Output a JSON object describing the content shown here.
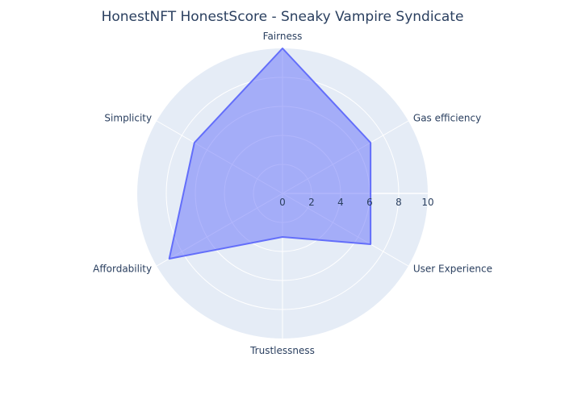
{
  "chart_data": {
    "type": "radar",
    "title": "HonestNFT HonestScore - Sneaky Vampire Syndicate",
    "categories": [
      "Fairness",
      "Gas efficiency",
      "User Experience",
      "Trustlessness",
      "Affordability",
      "Simplicity"
    ],
    "values": [
      10,
      7,
      7,
      3,
      9,
      7
    ],
    "radial_range": [
      0,
      10
    ],
    "radial_ticks": [
      0,
      2,
      4,
      6,
      8,
      10
    ],
    "grid": true,
    "colors": {
      "fill": "rgba(99,110,250,0.5)",
      "line": "#636efa",
      "background": "#e5ecf6",
      "grid": "#ffffff",
      "text": "#2a3f5f"
    }
  }
}
